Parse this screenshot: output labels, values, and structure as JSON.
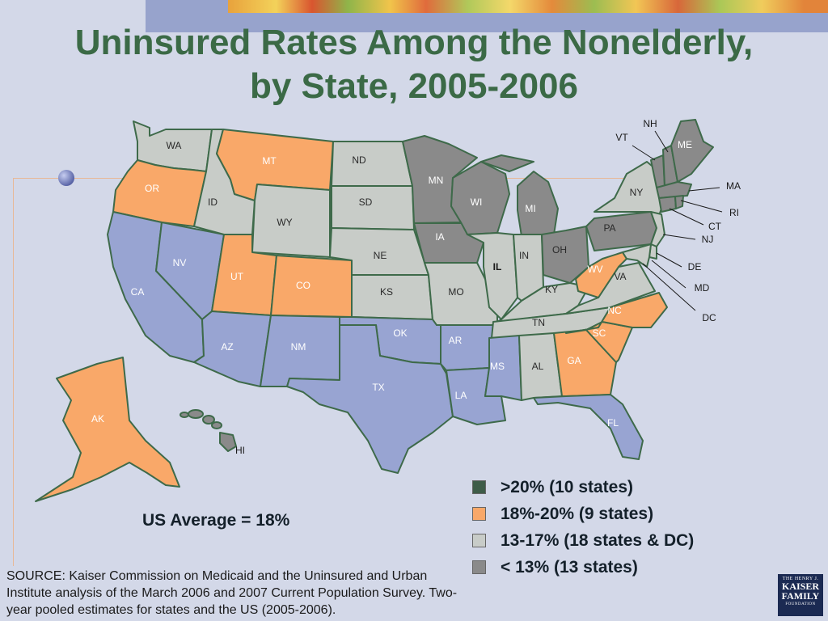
{
  "title_line1": "Uninsured Rates Among the Nonelderly,",
  "title_line2": "by State, 2005-2006",
  "colors": {
    "over20": "#3e5c48",
    "18to20": "#f9a869",
    "13to17": "#c8ccc8",
    "under13": "#8a8a8a",
    "blue": "#98a4d2",
    "border": "#3e6a4a"
  },
  "legend": [
    {
      "label": ">20% (10 states)",
      "color": "#3e5c48"
    },
    {
      "label": "18%-20% (9 states)",
      "color": "#f9a869"
    },
    {
      "label": "13-17% (18 states & DC)",
      "color": "#c8ccc8"
    },
    {
      "label": "< 13% (13 states)",
      "color": "#8a8a8a"
    }
  ],
  "us_average": "US Average = 18%",
  "source": "SOURCE: Kaiser Commission on Medicaid and the Uninsured and Urban Institute analysis of the March 2006 and 2007 Current Population Survey. Two-year pooled estimates for states and the US (2005-2006).",
  "logo": {
    "line1": "THE HENRY J.",
    "line2": "KAISER",
    "line3": "FAMILY",
    "line4": "FOUNDATION"
  },
  "state_labels": {
    "WA": "WA",
    "OR": "OR",
    "CA": "CA",
    "NV": "NV",
    "ID": "ID",
    "MT": "MT",
    "WY": "WY",
    "UT": "UT",
    "AZ": "AZ",
    "CO": "CO",
    "NM": "NM",
    "ND": "ND",
    "SD": "SD",
    "NE": "NE",
    "KS": "KS",
    "OK": "OK",
    "TX": "TX",
    "MN": "MN",
    "IA": "IA",
    "MO": "MO",
    "AR": "AR",
    "LA": "LA",
    "WI": "WI",
    "IL": "IL",
    "MI": "MI",
    "IN": "IN",
    "OH": "OH",
    "KY": "KY",
    "TN": "TN",
    "MS": "MS",
    "AL": "AL",
    "GA": "GA",
    "FL": "FL",
    "SC": "SC",
    "NC": "NC",
    "VA": "VA",
    "WV": "WV",
    "PA": "PA",
    "NY": "NY",
    "VT": "VT",
    "NH": "NH",
    "ME": "ME",
    "MA": "MA",
    "RI": "RI",
    "CT": "CT",
    "NJ": "NJ",
    "DE": "DE",
    "MD": "MD",
    "DC": "DC",
    "AK": "AK",
    "HI": "HI"
  }
}
